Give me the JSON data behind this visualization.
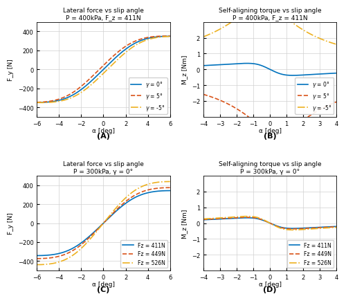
{
  "figsize": [
    5.0,
    4.39
  ],
  "dpi": 100,
  "A_title": "Lateral force vs slip angle",
  "A_subtitle": "P = 400kPa, F_z = 411N",
  "A_xlabel": "α [deg]",
  "A_ylabel": "F_y [N]",
  "A_xlim": [
    -6,
    6
  ],
  "A_ylim": [
    -500,
    500
  ],
  "A_xticks": [
    -6,
    -4,
    -2,
    0,
    2,
    4,
    6
  ],
  "A_yticks": [
    -400,
    -200,
    0,
    200,
    400
  ],
  "B_title": "Self-aligning torque vs slip angle",
  "B_subtitle": "P = 400kPa, F_z = 411N",
  "B_xlabel": "α [deg]",
  "B_ylabel": "M_z [Nm]",
  "B_xlim": [
    -4,
    4
  ],
  "B_ylim": [
    -3,
    3
  ],
  "B_xticks": [
    -4,
    -3,
    -2,
    -1,
    0,
    1,
    2,
    3,
    4
  ],
  "B_yticks": [
    -2,
    -1,
    0,
    1,
    2
  ],
  "C_title": "Lateral force vs slip angle",
  "C_subtitle": "P = 300kPa, γ = 0°",
  "C_xlabel": "α [deg]",
  "C_ylabel": "F_y [N]",
  "C_xlim": [
    -6,
    6
  ],
  "C_ylim": [
    -500,
    500
  ],
  "C_xticks": [
    -6,
    -4,
    -2,
    0,
    2,
    4,
    6
  ],
  "C_yticks": [
    -400,
    -200,
    0,
    200,
    400
  ],
  "D_title": "Self-aligning torque vs slip angle",
  "D_subtitle": "P = 300kPa, γ = 0°",
  "D_xlabel": "α [deg]",
  "D_ylabel": "M_z [Nm]",
  "D_xlim": [
    -4,
    4
  ],
  "D_ylim": [
    -3,
    3
  ],
  "D_xticks": [
    -4,
    -3,
    -2,
    -1,
    0,
    1,
    2,
    3,
    4
  ],
  "D_yticks": [
    -2,
    -1,
    0,
    1,
    2
  ],
  "color_blue": "#0072BD",
  "color_red": "#D95319",
  "color_yellow": "#EDB120",
  "panel_label_A": "(A)",
  "panel_label_B": "(B)",
  "panel_label_C": "(C)",
  "panel_label_D": "(D)"
}
